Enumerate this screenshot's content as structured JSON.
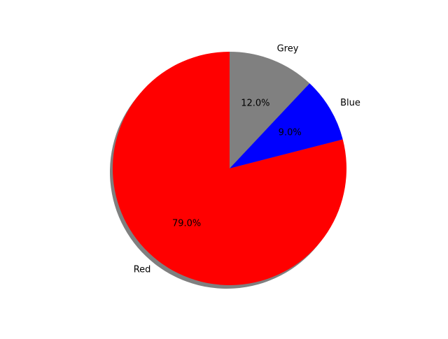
{
  "chart_data": {
    "type": "pie",
    "labels": [
      "Grey",
      "Blue",
      "Red"
    ],
    "values": [
      12.0,
      9.0,
      79.0
    ],
    "autopct": [
      "12.0%",
      "9.0%",
      "79.0%"
    ],
    "colors": [
      "#808080",
      "#0000ff",
      "#ff0000"
    ],
    "start_angle_deg": 90,
    "direction": "clockwise",
    "shadow": true,
    "legend": "none"
  }
}
